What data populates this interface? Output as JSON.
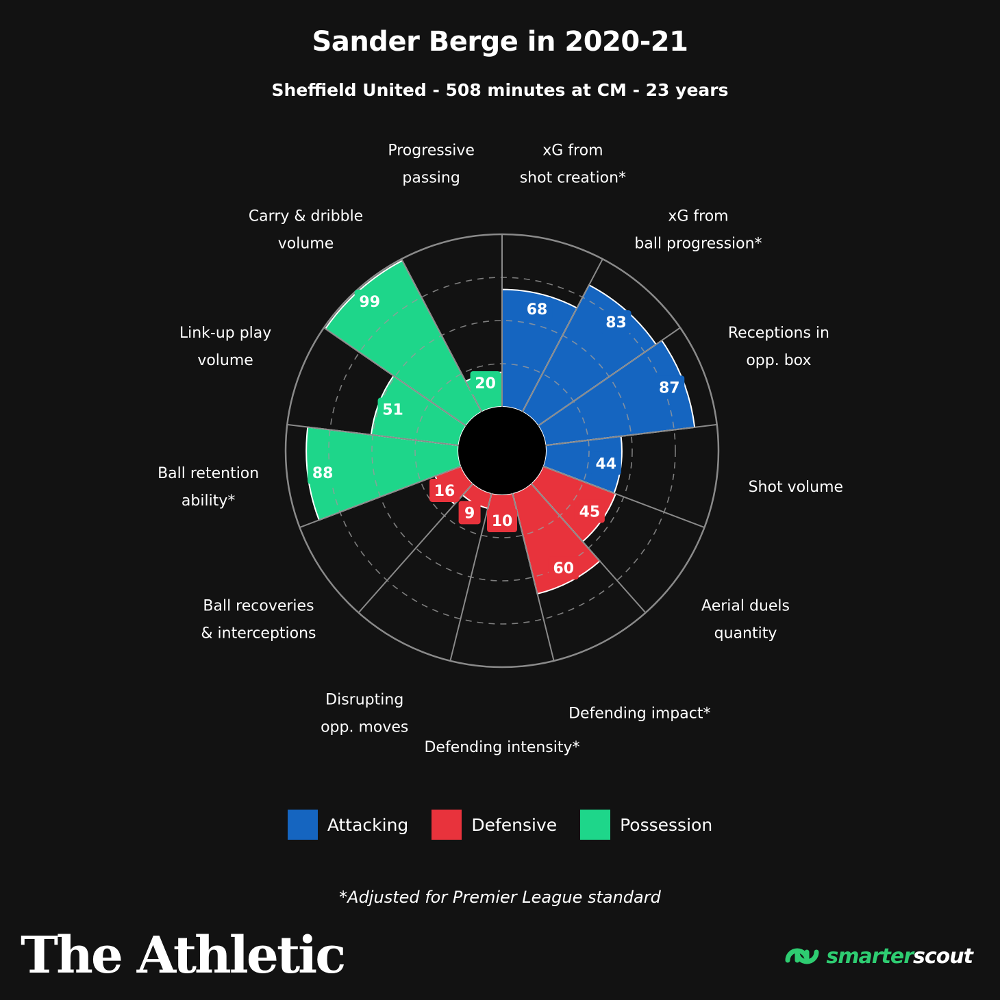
{
  "title": "Sander Berge in 2020-21",
  "subtitle": "Sheffield United - 508 minutes at CM - 23 years",
  "colors": {
    "Attacking": "#1565c0",
    "Defensive": "#e8333c",
    "Possession": "#1ed68a",
    "background": "#121212",
    "grid": "#8a8a8a"
  },
  "chart_data": {
    "type": "polar-bar",
    "rlim": [
      0,
      100
    ],
    "categories": [
      {
        "label": [
          "xG from",
          "shot creation*"
        ],
        "value": 68,
        "group": "Attacking"
      },
      {
        "label": [
          "xG from",
          "ball progression*"
        ],
        "value": 83,
        "group": "Attacking"
      },
      {
        "label": [
          "Receptions in",
          "opp. box"
        ],
        "value": 87,
        "group": "Attacking"
      },
      {
        "label": [
          "Shot volume"
        ],
        "value": 44,
        "group": "Attacking"
      },
      {
        "label": [
          "Aerial duels",
          "quantity"
        ],
        "value": 45,
        "group": "Defensive"
      },
      {
        "label": [
          "Defending impact*"
        ],
        "value": 60,
        "group": "Defensive"
      },
      {
        "label": [
          "Defending intensity*"
        ],
        "value": 10,
        "group": "Defensive"
      },
      {
        "label": [
          "Disrupting",
          "opp. moves"
        ],
        "value": 9,
        "group": "Defensive"
      },
      {
        "label": [
          "Ball recoveries",
          "& interceptions"
        ],
        "value": 16,
        "group": "Defensive"
      },
      {
        "label": [
          "Ball retention",
          "ability*"
        ],
        "value": 88,
        "group": "Possession"
      },
      {
        "label": [
          "Link-up play",
          "volume"
        ],
        "value": 51,
        "group": "Possession"
      },
      {
        "label": [
          "Carry & dribble",
          "volume"
        ],
        "value": 99,
        "group": "Possession"
      },
      {
        "label": [
          "Progressive",
          "passing"
        ],
        "value": 20,
        "group": "Possession"
      }
    ],
    "legend": [
      "Attacking",
      "Defensive",
      "Possession"
    ],
    "legend_position": "bottom",
    "grid": true
  },
  "footnote": "*Adjusted for Premier League standard",
  "brand": "The Athletic",
  "partner": {
    "part1": "smarter",
    "part2": "scout"
  }
}
